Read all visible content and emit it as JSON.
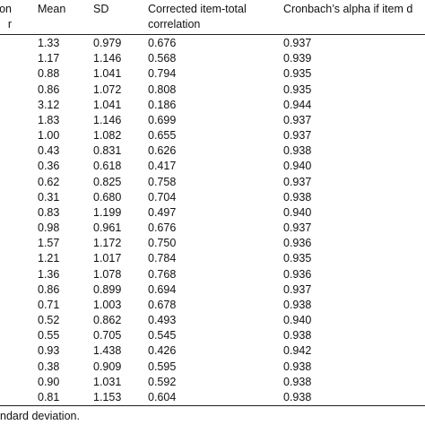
{
  "table": {
    "header": [
      [
        "on",
        "r"
      ],
      [
        "Mean"
      ],
      [
        "SD"
      ],
      [
        "Corrected item-total",
        "correlation"
      ],
      [
        "Cronbach’s alpha if item d"
      ]
    ],
    "rows": [
      [
        "1.33",
        "0.979",
        "0.676",
        "0.937"
      ],
      [
        "1.17",
        "1.146",
        "0.568",
        "0.939"
      ],
      [
        "0.88",
        "1.041",
        "0.794",
        "0.935"
      ],
      [
        "0.86",
        "1.072",
        "0.808",
        "0.935"
      ],
      [
        "3.12",
        "1.041",
        "0.186",
        "0.944"
      ],
      [
        "1.83",
        "1.146",
        "0.699",
        "0.937"
      ],
      [
        "1.00",
        "1.082",
        "0.655",
        "0.937"
      ],
      [
        "0.43",
        "0.831",
        "0.626",
        "0.938"
      ],
      [
        "0.36",
        "0.618",
        "0.417",
        "0.940"
      ],
      [
        "0.62",
        "0.825",
        "0.758",
        "0.937"
      ],
      [
        "0.31",
        "0.680",
        "0.704",
        "0.938"
      ],
      [
        "0.83",
        "1.199",
        "0.497",
        "0.940"
      ],
      [
        "0.98",
        "0.961",
        "0.676",
        "0.937"
      ],
      [
        "1.57",
        "1.172",
        "0.750",
        "0.936"
      ],
      [
        "1.21",
        "1.017",
        "0.784",
        "0.935"
      ],
      [
        "1.36",
        "1.078",
        "0.768",
        "0.936"
      ],
      [
        "0.86",
        "0.899",
        "0.694",
        "0.937"
      ],
      [
        "0.71",
        "1.003",
        "0.678",
        "0.938"
      ],
      [
        "0.52",
        "0.862",
        "0.493",
        "0.940"
      ],
      [
        "0.55",
        "0.705",
        "0.545",
        "0.938"
      ],
      [
        "0.93",
        "1.438",
        "0.426",
        "0.942"
      ],
      [
        "0.38",
        "0.909",
        "0.595",
        "0.938"
      ],
      [
        "0.90",
        "1.031",
        "0.592",
        "0.938"
      ],
      [
        "0.81",
        "1.153",
        "0.604",
        "0.938"
      ]
    ],
    "footnote": "ndard deviation."
  }
}
